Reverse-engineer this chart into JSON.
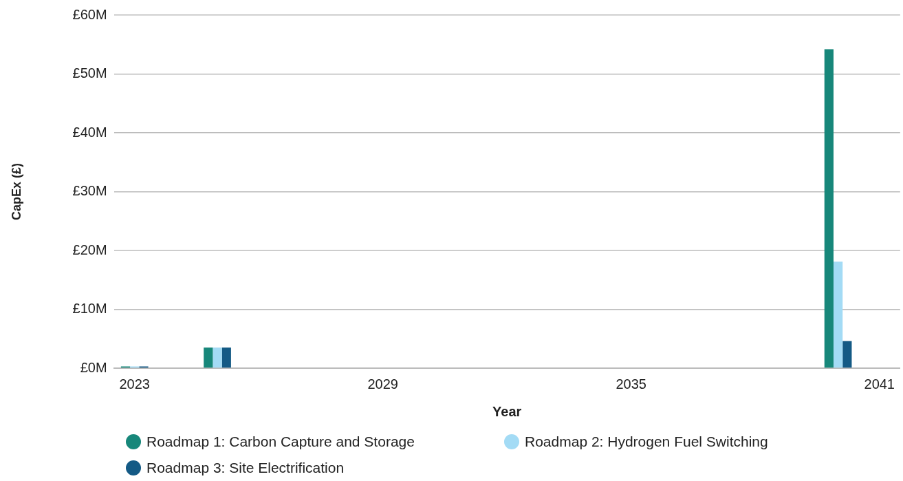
{
  "chart_data": {
    "type": "bar",
    "xlabel": "Year",
    "ylabel": "CapEx (£)",
    "categories": [
      "2023",
      null,
      null,
      null,
      null,
      null,
      "2029",
      null,
      null,
      null,
      null,
      null,
      "2035",
      null,
      null,
      null,
      null,
      null,
      "2041"
    ],
    "series": [
      {
        "name": "Roadmap 1: Carbon Capture and Storage",
        "color": "#17877a",
        "values": [
          0.3,
          0,
          3.5,
          0,
          0,
          0,
          0,
          0,
          0,
          0,
          0,
          0,
          0,
          0,
          0,
          0,
          0,
          54.2,
          0
        ]
      },
      {
        "name": "Roadmap 2: Hydrogen Fuel Switching",
        "color": "#a3dbf5",
        "values": [
          0.3,
          0,
          3.5,
          0,
          0,
          0,
          0,
          0,
          0,
          0,
          0,
          0,
          0,
          0,
          0,
          0,
          0,
          18.1,
          0
        ]
      },
      {
        "name": "Roadmap 3: Site Electrification",
        "color": "#145a85",
        "values": [
          0.3,
          0,
          3.5,
          0,
          0,
          0,
          0,
          0,
          0,
          0,
          0,
          0,
          0,
          0,
          0,
          0,
          0,
          4.6,
          0
        ]
      }
    ],
    "ylim": [
      0,
      60
    ],
    "yticks": [
      {
        "value": 0,
        "label": "£0M"
      },
      {
        "value": 10,
        "label": "£10M"
      },
      {
        "value": 20,
        "label": "£20M"
      },
      {
        "value": 30,
        "label": "£30M"
      },
      {
        "value": 40,
        "label": "£40M"
      },
      {
        "value": 50,
        "label": "£50M"
      },
      {
        "value": 60,
        "label": "£60M"
      }
    ],
    "grid": "y",
    "legend": "bottom"
  }
}
